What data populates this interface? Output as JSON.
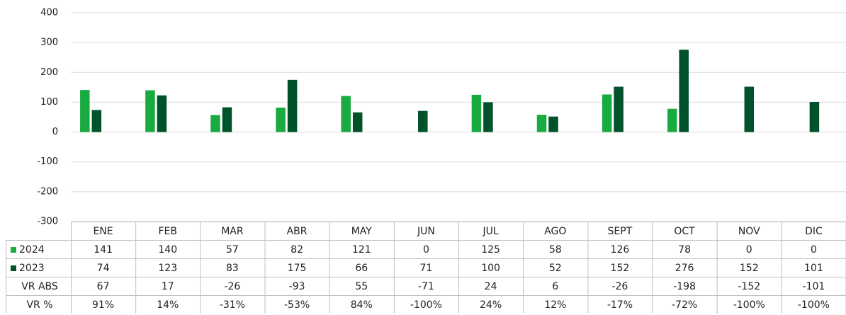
{
  "chart_data": {
    "type": "bar",
    "categories": [
      "ENE",
      "FEB",
      "MAR",
      "ABR",
      "MAY",
      "JUN",
      "JUL",
      "AGO",
      "SEPT",
      "OCT",
      "NOV",
      "DIC"
    ],
    "series": [
      {
        "name": "2024",
        "color": "#1aab40",
        "values": [
          141,
          140,
          57,
          82,
          121,
          0,
          125,
          58,
          126,
          78,
          0,
          0
        ]
      },
      {
        "name": "2023",
        "color": "#00522a",
        "values": [
          74,
          123,
          83,
          175,
          66,
          71,
          100,
          52,
          152,
          276,
          152,
          101
        ]
      }
    ],
    "table_rows": [
      {
        "name": "VR ABS",
        "values": [
          67,
          17,
          -26,
          -93,
          55,
          -71,
          24,
          6,
          -26,
          -198,
          -152,
          -101
        ]
      },
      {
        "name": "VR %",
        "values": [
          91,
          14,
          -31,
          -53,
          84,
          -100,
          24,
          12,
          -17,
          -72,
          -100,
          -100
        ],
        "value_labels": [
          "91%",
          "14%",
          "-31%",
          "-53%",
          "84%",
          "-100%",
          "24%",
          "12%",
          "-17%",
          "-72%",
          "-100%",
          "-100%"
        ]
      }
    ],
    "ylim": [
      -300,
      400
    ],
    "yticks": [
      -300,
      -200,
      -100,
      0,
      100,
      200,
      300,
      400
    ],
    "grid": true
  }
}
